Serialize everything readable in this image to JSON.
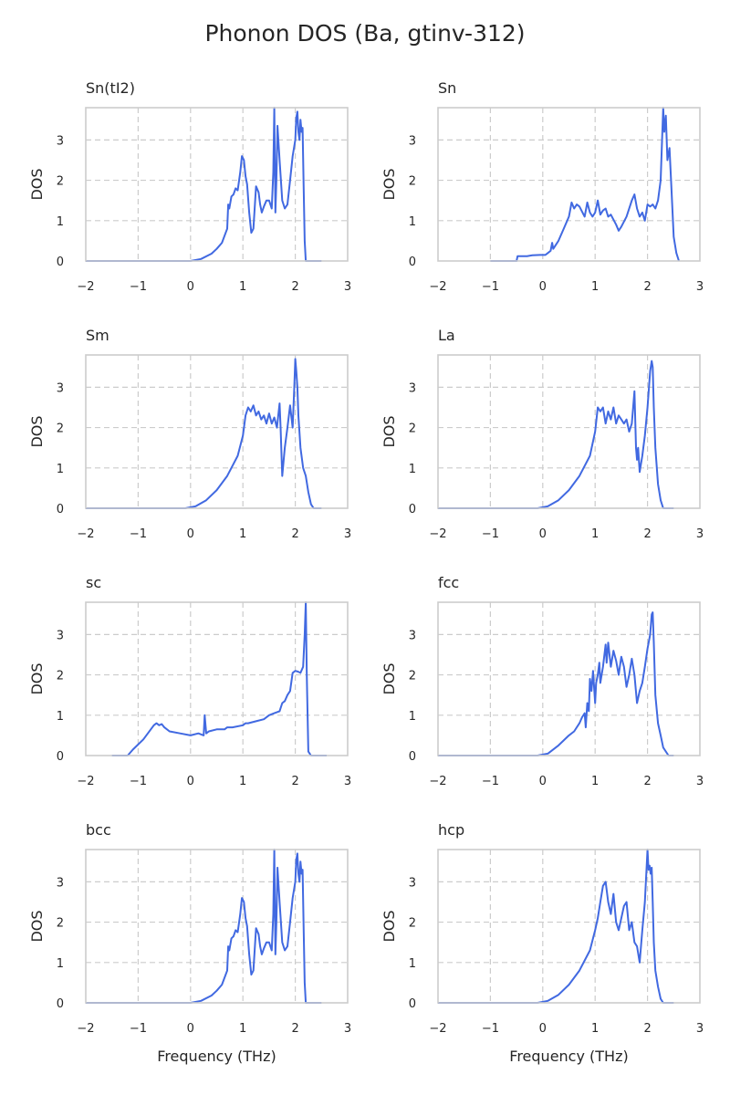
{
  "figure": {
    "title": "Phonon DOS (Ba, gtinv-312)",
    "xlabel": "Frequency (THz)",
    "ylabel": "DOS",
    "line_color": "#4169e1",
    "grid_color": "#cccccc"
  },
  "chart_data": [
    {
      "type": "line",
      "title": "Sn(tI2)",
      "xlabel": "",
      "ylabel": "DOS",
      "xlim": [
        -2,
        3
      ],
      "ylim": [
        0,
        3.8
      ],
      "grid": true,
      "xticks": [
        "−2",
        "−1",
        "0",
        "1",
        "2",
        "3"
      ],
      "yticks": [
        "0",
        "1",
        "2",
        "3"
      ],
      "series": [
        {
          "x": [
            -2,
            0,
            0.2,
            0.4,
            0.5,
            0.6,
            0.7,
            0.72,
            0.74,
            0.78,
            0.82,
            0.86,
            0.9,
            0.95,
            0.98,
            1.02,
            1.05,
            1.08,
            1.12,
            1.16,
            1.2,
            1.25,
            1.3,
            1.33,
            1.36,
            1.4,
            1.45,
            1.5,
            1.55,
            1.58,
            1.6,
            1.62,
            1.64,
            1.66,
            1.7,
            1.75,
            1.8,
            1.85,
            1.9,
            1.95,
            2.0,
            2.02,
            2.04,
            2.06,
            2.08,
            2.1,
            2.12,
            2.14,
            2.16,
            2.18,
            2.2,
            2.22,
            2.25,
            2.4,
            2.5
          ],
          "y": [
            0,
            0,
            0.05,
            0.18,
            0.3,
            0.45,
            0.8,
            1.4,
            1.3,
            1.6,
            1.65,
            1.8,
            1.75,
            2.2,
            2.6,
            2.5,
            2.1,
            1.9,
            1.2,
            0.7,
            0.8,
            1.85,
            1.7,
            1.4,
            1.2,
            1.35,
            1.5,
            1.5,
            1.3,
            2.2,
            3.8,
            1.2,
            2.0,
            3.35,
            2.5,
            1.5,
            1.3,
            1.4,
            2.0,
            2.6,
            3.0,
            3.55,
            3.7,
            3.2,
            3.0,
            3.5,
            3.2,
            3.3,
            1.8,
            0.5,
            0,
            0,
            0,
            0,
            0
          ]
        }
      ]
    },
    {
      "type": "line",
      "title": "Sn",
      "xlabel": "",
      "ylabel": "DOS",
      "xlim": [
        -2,
        3
      ],
      "ylim": [
        0,
        3.8
      ],
      "grid": true,
      "xticks": [
        "−2",
        "−1",
        "0",
        "1",
        "2",
        "3"
      ],
      "yticks": [
        "0",
        "1",
        "2",
        "3"
      ],
      "series": [
        {
          "x": [
            -1,
            -0.5,
            -0.48,
            -0.3,
            -0.2,
            -0.05,
            0.05,
            0.1,
            0.15,
            0.18,
            0.2,
            0.3,
            0.4,
            0.5,
            0.55,
            0.6,
            0.65,
            0.7,
            0.8,
            0.85,
            0.9,
            0.95,
            1.0,
            1.05,
            1.1,
            1.15,
            1.2,
            1.25,
            1.3,
            1.4,
            1.45,
            1.5,
            1.6,
            1.7,
            1.75,
            1.8,
            1.85,
            1.9,
            1.95,
            2.0,
            2.05,
            2.1,
            2.15,
            2.2,
            2.25,
            2.3,
            2.32,
            2.35,
            2.38,
            2.42,
            2.45,
            2.5,
            2.55,
            2.6
          ],
          "y": [
            0,
            0,
            0.12,
            0.12,
            0.14,
            0.15,
            0.15,
            0.2,
            0.25,
            0.45,
            0.3,
            0.5,
            0.8,
            1.1,
            1.45,
            1.3,
            1.4,
            1.35,
            1.1,
            1.45,
            1.2,
            1.1,
            1.2,
            1.5,
            1.15,
            1.25,
            1.3,
            1.1,
            1.15,
            0.9,
            0.75,
            0.85,
            1.1,
            1.5,
            1.65,
            1.3,
            1.1,
            1.2,
            1.0,
            1.4,
            1.35,
            1.4,
            1.3,
            1.5,
            2.0,
            3.8,
            3.2,
            3.6,
            2.5,
            2.8,
            2.0,
            0.6,
            0.2,
            0
          ]
        }
      ]
    },
    {
      "type": "line",
      "title": "Sm",
      "xlabel": "",
      "ylabel": "DOS",
      "xlim": [
        -2,
        3
      ],
      "ylim": [
        0,
        3.8
      ],
      "grid": true,
      "xticks": [
        "−2",
        "−1",
        "0",
        "1",
        "2",
        "3"
      ],
      "yticks": [
        "0",
        "1",
        "2",
        "3"
      ],
      "series": [
        {
          "x": [
            -2,
            -0.1,
            0.1,
            0.3,
            0.5,
            0.7,
            0.9,
            1.0,
            1.05,
            1.1,
            1.15,
            1.2,
            1.25,
            1.3,
            1.35,
            1.4,
            1.45,
            1.5,
            1.55,
            1.6,
            1.65,
            1.7,
            1.72,
            1.75,
            1.8,
            1.85,
            1.9,
            1.95,
            1.98,
            2.0,
            2.02,
            2.04,
            2.06,
            2.1,
            2.15,
            2.2,
            2.25,
            2.3,
            2.35,
            2.4,
            2.5
          ],
          "y": [
            0,
            0,
            0.05,
            0.2,
            0.45,
            0.8,
            1.3,
            1.8,
            2.3,
            2.5,
            2.4,
            2.55,
            2.3,
            2.4,
            2.2,
            2.3,
            2.1,
            2.35,
            2.1,
            2.25,
            2.0,
            2.6,
            2.0,
            0.8,
            1.5,
            2.0,
            2.55,
            2.0,
            3.0,
            3.7,
            3.4,
            3.0,
            2.3,
            1.5,
            1.0,
            0.8,
            0.4,
            0.1,
            0,
            0,
            0
          ]
        }
      ]
    },
    {
      "type": "line",
      "title": "La",
      "xlabel": "",
      "ylabel": "DOS",
      "xlim": [
        -2,
        3
      ],
      "ylim": [
        0,
        3.8
      ],
      "grid": true,
      "xticks": [
        "−2",
        "−1",
        "0",
        "1",
        "2",
        "3"
      ],
      "yticks": [
        "0",
        "1",
        "2",
        "3"
      ],
      "series": [
        {
          "x": [
            -2,
            -0.1,
            0.1,
            0.3,
            0.5,
            0.7,
            0.9,
            1.0,
            1.05,
            1.1,
            1.15,
            1.2,
            1.25,
            1.3,
            1.35,
            1.4,
            1.45,
            1.5,
            1.55,
            1.6,
            1.65,
            1.7,
            1.75,
            1.78,
            1.8,
            1.82,
            1.85,
            1.9,
            1.95,
            2.0,
            2.05,
            2.08,
            2.1,
            2.12,
            2.15,
            2.2,
            2.25,
            2.3,
            2.4,
            2.5
          ],
          "y": [
            0,
            0,
            0.05,
            0.2,
            0.45,
            0.8,
            1.3,
            1.9,
            2.5,
            2.4,
            2.5,
            2.1,
            2.4,
            2.2,
            2.5,
            2.1,
            2.3,
            2.2,
            2.1,
            2.2,
            1.9,
            2.1,
            2.9,
            1.5,
            1.2,
            1.5,
            0.9,
            1.3,
            1.8,
            2.5,
            3.4,
            3.65,
            3.5,
            2.5,
            1.5,
            0.6,
            0.2,
            0,
            0,
            0
          ]
        }
      ]
    },
    {
      "type": "line",
      "title": "sc",
      "xlabel": "",
      "ylabel": "DOS",
      "xlim": [
        -2,
        3
      ],
      "ylim": [
        0,
        3.8
      ],
      "grid": true,
      "xticks": [
        "−2",
        "−1",
        "0",
        "1",
        "2",
        "3"
      ],
      "yticks": [
        "0",
        "1",
        "2",
        "3"
      ],
      "series": [
        {
          "x": [
            -1.5,
            -1.2,
            -1.1,
            -0.9,
            -0.7,
            -0.65,
            -0.6,
            -0.55,
            -0.5,
            -0.4,
            -0.2,
            0,
            0.15,
            0.25,
            0.27,
            0.3,
            0.35,
            0.5,
            0.65,
            0.7,
            0.8,
            1.0,
            1.05,
            1.1,
            1.25,
            1.4,
            1.5,
            1.6,
            1.7,
            1.75,
            1.8,
            1.85,
            1.9,
            1.95,
            2.0,
            2.05,
            2.1,
            2.15,
            2.18,
            2.2,
            2.22,
            2.25,
            2.3,
            2.6
          ],
          "y": [
            0,
            0,
            0.15,
            0.4,
            0.75,
            0.8,
            0.75,
            0.78,
            0.7,
            0.6,
            0.55,
            0.5,
            0.55,
            0.5,
            1.0,
            0.55,
            0.6,
            0.65,
            0.65,
            0.7,
            0.7,
            0.75,
            0.8,
            0.8,
            0.85,
            0.9,
            1.0,
            1.05,
            1.1,
            1.3,
            1.35,
            1.5,
            1.6,
            2.05,
            2.1,
            2.08,
            2.05,
            2.2,
            3.0,
            3.8,
            2.0,
            0.1,
            0,
            0
          ]
        }
      ]
    },
    {
      "type": "line",
      "title": "fcc",
      "xlabel": "",
      "ylabel": "DOS",
      "xlim": [
        -2,
        3
      ],
      "ylim": [
        0,
        3.8
      ],
      "grid": true,
      "xticks": [
        "−2",
        "−1",
        "0",
        "1",
        "2",
        "3"
      ],
      "yticks": [
        "0",
        "1",
        "2",
        "3"
      ],
      "series": [
        {
          "x": [
            -2,
            -0.1,
            0.1,
            0.3,
            0.5,
            0.6,
            0.7,
            0.75,
            0.8,
            0.82,
            0.85,
            0.88,
            0.9,
            0.93,
            0.96,
            1.0,
            1.02,
            1.05,
            1.08,
            1.1,
            1.15,
            1.2,
            1.22,
            1.25,
            1.3,
            1.35,
            1.4,
            1.45,
            1.5,
            1.55,
            1.6,
            1.65,
            1.7,
            1.75,
            1.8,
            1.85,
            1.9,
            1.95,
            2.0,
            2.05,
            2.08,
            2.1,
            2.12,
            2.15,
            2.2,
            2.25,
            2.3,
            2.4,
            2.5
          ],
          "y": [
            0,
            0,
            0.05,
            0.25,
            0.5,
            0.6,
            0.8,
            0.95,
            1.05,
            0.7,
            1.3,
            1.1,
            1.9,
            1.6,
            2.1,
            1.3,
            1.8,
            2.0,
            2.3,
            1.8,
            2.2,
            2.75,
            2.3,
            2.8,
            2.2,
            2.6,
            2.35,
            2.0,
            2.45,
            2.2,
            1.7,
            2.0,
            2.4,
            2.0,
            1.3,
            1.6,
            1.8,
            2.2,
            2.65,
            3.0,
            3.5,
            3.55,
            2.8,
            1.5,
            0.8,
            0.5,
            0.2,
            0,
            0
          ]
        }
      ]
    },
    {
      "type": "line",
      "title": "bcc",
      "xlabel": "Frequency (THz)",
      "ylabel": "DOS",
      "xlim": [
        -2,
        3
      ],
      "ylim": [
        0,
        3.8
      ],
      "grid": true,
      "xticks": [
        "−2",
        "−1",
        "0",
        "1",
        "2",
        "3"
      ],
      "yticks": [
        "0",
        "1",
        "2",
        "3"
      ],
      "series": [
        {
          "x": [
            -2,
            0,
            0.2,
            0.4,
            0.5,
            0.6,
            0.7,
            0.72,
            0.74,
            0.78,
            0.82,
            0.86,
            0.9,
            0.95,
            0.98,
            1.02,
            1.05,
            1.08,
            1.12,
            1.16,
            1.2,
            1.25,
            1.3,
            1.33,
            1.36,
            1.4,
            1.45,
            1.5,
            1.55,
            1.58,
            1.6,
            1.62,
            1.64,
            1.66,
            1.7,
            1.75,
            1.8,
            1.85,
            1.9,
            1.95,
            2.0,
            2.02,
            2.04,
            2.06,
            2.08,
            2.1,
            2.12,
            2.14,
            2.16,
            2.18,
            2.2,
            2.22,
            2.25,
            2.4,
            2.5
          ],
          "y": [
            0,
            0,
            0.05,
            0.18,
            0.3,
            0.45,
            0.8,
            1.4,
            1.3,
            1.6,
            1.65,
            1.8,
            1.75,
            2.2,
            2.6,
            2.5,
            2.1,
            1.9,
            1.2,
            0.7,
            0.8,
            1.85,
            1.7,
            1.4,
            1.2,
            1.35,
            1.5,
            1.5,
            1.3,
            2.2,
            3.8,
            1.2,
            2.0,
            3.35,
            2.5,
            1.5,
            1.3,
            1.4,
            2.0,
            2.6,
            3.0,
            3.55,
            3.7,
            3.2,
            3.0,
            3.5,
            3.2,
            3.3,
            1.8,
            0.5,
            0,
            0,
            0,
            0,
            0
          ]
        }
      ]
    },
    {
      "type": "line",
      "title": "hcp",
      "xlabel": "Frequency (THz)",
      "ylabel": "DOS",
      "xlim": [
        -2,
        3
      ],
      "ylim": [
        0,
        3.8
      ],
      "grid": true,
      "xticks": [
        "−2",
        "−1",
        "0",
        "1",
        "2",
        "3"
      ],
      "yticks": [
        "0",
        "1",
        "2",
        "3"
      ],
      "series": [
        {
          "x": [
            -2,
            -0.1,
            0.1,
            0.3,
            0.5,
            0.7,
            0.9,
            1.0,
            1.05,
            1.1,
            1.15,
            1.2,
            1.25,
            1.3,
            1.35,
            1.4,
            1.45,
            1.5,
            1.55,
            1.6,
            1.65,
            1.7,
            1.75,
            1.8,
            1.85,
            1.9,
            1.95,
            2.0,
            2.02,
            2.04,
            2.06,
            2.08,
            2.1,
            2.12,
            2.15,
            2.2,
            2.25,
            2.3,
            2.5
          ],
          "y": [
            0,
            0,
            0.05,
            0.2,
            0.45,
            0.8,
            1.3,
            1.8,
            2.1,
            2.5,
            2.9,
            3.0,
            2.5,
            2.2,
            2.7,
            2.0,
            1.8,
            2.1,
            2.4,
            2.5,
            1.8,
            2.0,
            1.5,
            1.4,
            1.0,
            1.8,
            2.5,
            3.8,
            3.3,
            3.4,
            3.2,
            3.35,
            2.5,
            1.5,
            0.8,
            0.4,
            0.1,
            0,
            0
          ]
        }
      ]
    }
  ]
}
